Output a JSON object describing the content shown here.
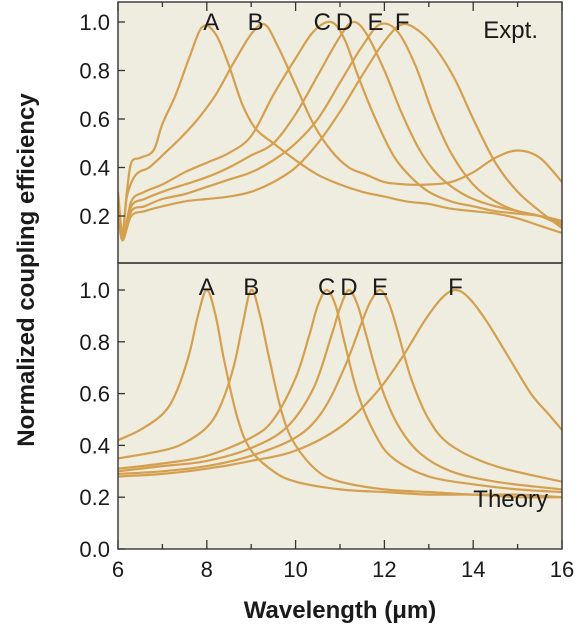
{
  "colors": {
    "panel_bg": "#efece0",
    "curve": "#d4a04f",
    "frame": "#333333",
    "text": "#1a1a1a"
  },
  "chart_data": {
    "type": "line",
    "xlabel": "Wavelength (μm)",
    "ylabel": "Normalized coupling efficiency",
    "xlim": [
      6,
      16
    ],
    "x_ticks": [
      "6",
      "8",
      "10",
      "12",
      "14",
      "16"
    ],
    "panels": [
      {
        "label": "Expt.",
        "label_position": "top-right",
        "ylim": [
          0,
          1.1
        ],
        "y_ticks": [
          "0.2",
          "0.4",
          "0.6",
          "0.8",
          "1.0"
        ],
        "peak_labels": [
          {
            "text": "A",
            "x": 8.1
          },
          {
            "text": "B",
            "x": 9.1
          },
          {
            "text": "C",
            "x": 10.6
          },
          {
            "text": "D",
            "x": 11.1
          },
          {
            "text": "E",
            "x": 11.8
          },
          {
            "text": "F",
            "x": 12.4
          }
        ],
        "series": [
          {
            "label": "A",
            "x": [
              6,
              6.1,
              6.2,
              6.3,
              6.5,
              6.8,
              7,
              7.3,
              7.6,
              7.9,
              8.2,
              8.5,
              8.8,
              9.1,
              9.5,
              10,
              10.5,
              11,
              11.5,
              12,
              12.5,
              13,
              13.5,
              14,
              14.5,
              15,
              15.5,
              16
            ],
            "y": [
              0.25,
              0.12,
              0.3,
              0.42,
              0.44,
              0.47,
              0.58,
              0.7,
              0.85,
              0.98,
              0.95,
              0.82,
              0.66,
              0.56,
              0.5,
              0.43,
              0.37,
              0.33,
              0.3,
              0.28,
              0.26,
              0.25,
              0.23,
              0.22,
              0.21,
              0.19,
              0.16,
              0.13
            ]
          },
          {
            "label": "B",
            "x": [
              6,
              6.1,
              6.2,
              6.4,
              6.7,
              7,
              7.4,
              7.8,
              8.2,
              8.6,
              9,
              9.3,
              9.6,
              10,
              10.4,
              10.8,
              11.2,
              11.6,
              12,
              12.5,
              13,
              13.5,
              14,
              14.5,
              15,
              15.5,
              16
            ],
            "y": [
              0.3,
              0.13,
              0.28,
              0.37,
              0.4,
              0.45,
              0.52,
              0.6,
              0.7,
              0.83,
              0.95,
              0.99,
              0.9,
              0.74,
              0.58,
              0.47,
              0.4,
              0.37,
              0.34,
              0.33,
              0.33,
              0.34,
              0.38,
              0.44,
              0.47,
              0.44,
              0.34
            ]
          },
          {
            "label": "C",
            "x": [
              6,
              6.1,
              6.3,
              6.6,
              7,
              7.5,
              8,
              8.5,
              9,
              9.5,
              10,
              10.4,
              10.8,
              11.1,
              11.4,
              11.8,
              12.2,
              12.6,
              13,
              13.5,
              14,
              14.5,
              15,
              15.5,
              16
            ],
            "y": [
              0.28,
              0.1,
              0.26,
              0.3,
              0.33,
              0.38,
              0.42,
              0.46,
              0.53,
              0.7,
              0.85,
              0.96,
              1.0,
              0.93,
              0.78,
              0.6,
              0.45,
              0.36,
              0.3,
              0.26,
              0.24,
              0.22,
              0.21,
              0.2,
              0.18
            ]
          },
          {
            "label": "D",
            "x": [
              6,
              6.1,
              6.3,
              6.6,
              7,
              7.5,
              8,
              8.5,
              9,
              9.5,
              10,
              10.5,
              11,
              11.3,
              11.6,
              12,
              12.4,
              12.8,
              13.2,
              13.6,
              14,
              14.5,
              15,
              15.5,
              16
            ],
            "y": [
              0.26,
              0.1,
              0.24,
              0.27,
              0.3,
              0.33,
              0.36,
              0.4,
              0.45,
              0.5,
              0.62,
              0.78,
              0.94,
              1.0,
              0.95,
              0.8,
              0.62,
              0.47,
              0.37,
              0.31,
              0.27,
              0.24,
              0.22,
              0.2,
              0.17
            ]
          },
          {
            "label": "E",
            "x": [
              6,
              6.1,
              6.3,
              6.6,
              7,
              7.5,
              8,
              8.5,
              9,
              9.5,
              10,
              10.5,
              11,
              11.5,
              11.9,
              12.3,
              12.7,
              13.1,
              13.5,
              14,
              14.5,
              15,
              15.5,
              16
            ],
            "y": [
              0.24,
              0.1,
              0.22,
              0.24,
              0.27,
              0.29,
              0.32,
              0.35,
              0.38,
              0.43,
              0.5,
              0.6,
              0.75,
              0.9,
              0.99,
              0.96,
              0.82,
              0.62,
              0.46,
              0.33,
              0.26,
              0.22,
              0.2,
              0.16
            ]
          },
          {
            "label": "F",
            "x": [
              6,
              6.1,
              6.3,
              6.6,
              7,
              7.5,
              8,
              8.5,
              9,
              9.5,
              10,
              10.5,
              11,
              11.5,
              12,
              12.4,
              12.8,
              13.2,
              13.6,
              14,
              14.5,
              15,
              15.5,
              16
            ],
            "y": [
              0.22,
              0.1,
              0.2,
              0.22,
              0.24,
              0.26,
              0.27,
              0.28,
              0.3,
              0.34,
              0.4,
              0.5,
              0.63,
              0.78,
              0.92,
              0.99,
              0.96,
              0.88,
              0.76,
              0.6,
              0.42,
              0.3,
              0.22,
              0.15
            ]
          }
        ]
      },
      {
        "label": "Theory",
        "label_position": "bottom-right",
        "ylim": [
          0,
          1.1
        ],
        "y_ticks": [
          "0.0",
          "0.2",
          "0.4",
          "0.6",
          "0.8",
          "1.0"
        ],
        "peak_labels": [
          {
            "text": "A",
            "x": 8.0
          },
          {
            "text": "B",
            "x": 9.0
          },
          {
            "text": "C",
            "x": 10.7
          },
          {
            "text": "D",
            "x": 11.2
          },
          {
            "text": "E",
            "x": 11.9
          },
          {
            "text": "F",
            "x": 13.6
          }
        ],
        "series": [
          {
            "label": "A",
            "peak": 8.0,
            "width": 0.4,
            "base": 0.28,
            "x": [
              6,
              6.5,
              7,
              7.3,
              7.6,
              7.8,
              8,
              8.2,
              8.4,
              8.7,
              9,
              9.5,
              10,
              11,
              12,
              13,
              14,
              15,
              16
            ],
            "y": [
              0.42,
              0.46,
              0.52,
              0.6,
              0.75,
              0.9,
              1.0,
              0.9,
              0.72,
              0.5,
              0.38,
              0.3,
              0.26,
              0.23,
              0.22,
              0.21,
              0.21,
              0.2,
              0.2
            ]
          },
          {
            "label": "B",
            "x": [
              6,
              7,
              7.5,
              8,
              8.3,
              8.6,
              8.8,
              9,
              9.2,
              9.4,
              9.7,
              10,
              10.5,
              11,
              12,
              13,
              14,
              15,
              16
            ],
            "y": [
              0.35,
              0.38,
              0.41,
              0.47,
              0.55,
              0.7,
              0.86,
              1.0,
              0.9,
              0.74,
              0.52,
              0.4,
              0.3,
              0.26,
              0.23,
              0.22,
              0.21,
              0.21,
              0.2
            ]
          },
          {
            "label": "C",
            "x": [
              6,
              7,
              8,
              9,
              9.5,
              10,
              10.3,
              10.5,
              10.7,
              10.9,
              11.1,
              11.4,
              11.8,
              12.2,
              13,
              14,
              15,
              16
            ],
            "y": [
              0.31,
              0.33,
              0.36,
              0.43,
              0.5,
              0.66,
              0.82,
              0.94,
              1.0,
              0.94,
              0.8,
              0.6,
              0.44,
              0.35,
              0.28,
              0.25,
              0.23,
              0.22
            ]
          },
          {
            "label": "D",
            "x": [
              6,
              7,
              8,
              9,
              9.8,
              10.4,
              10.8,
              11,
              11.2,
              11.4,
              11.6,
              11.9,
              12.3,
              12.8,
              13.5,
              14.5,
              16
            ],
            "y": [
              0.3,
              0.32,
              0.34,
              0.39,
              0.47,
              0.62,
              0.82,
              0.93,
              1.0,
              0.94,
              0.82,
              0.64,
              0.48,
              0.37,
              0.3,
              0.26,
              0.23
            ]
          },
          {
            "label": "E",
            "x": [
              6,
              7,
              8,
              9,
              10,
              10.6,
              11.1,
              11.5,
              11.7,
              11.9,
              12.1,
              12.3,
              12.6,
              13,
              13.5,
              14.5,
              16
            ],
            "y": [
              0.29,
              0.3,
              0.32,
              0.36,
              0.43,
              0.53,
              0.7,
              0.88,
              0.96,
              1.0,
              0.95,
              0.84,
              0.66,
              0.5,
              0.4,
              0.32,
              0.26
            ]
          },
          {
            "label": "F",
            "x": [
              6,
              7,
              8,
              9,
              10,
              11,
              11.8,
              12.4,
              12.9,
              13.3,
              13.6,
              13.9,
              14.3,
              14.8,
              15.3,
              15.7,
              16
            ],
            "y": [
              0.28,
              0.29,
              0.31,
              0.34,
              0.38,
              0.47,
              0.6,
              0.74,
              0.88,
              0.97,
              1.0,
              0.97,
              0.88,
              0.74,
              0.6,
              0.52,
              0.46
            ]
          }
        ]
      }
    ]
  }
}
